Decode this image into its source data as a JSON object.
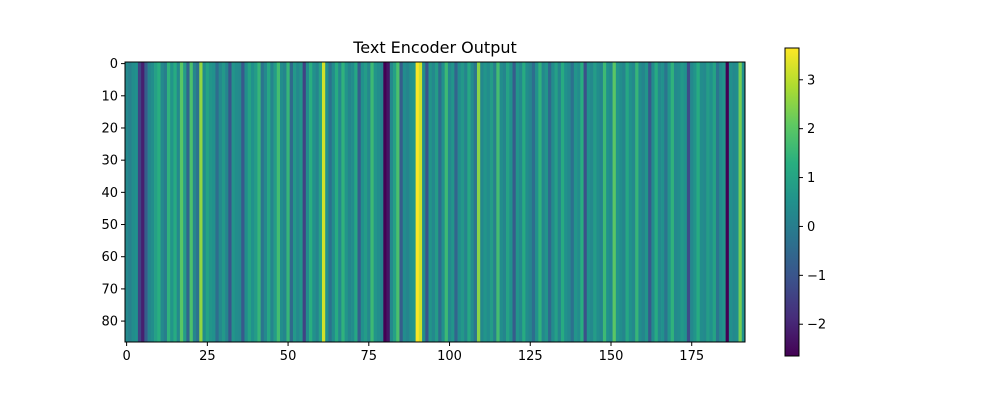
{
  "chart_data": {
    "type": "heatmap",
    "title": "Text Encoder Output",
    "xlabel": "",
    "ylabel": "",
    "n_columns": 192,
    "n_rows": 87,
    "xlim": [
      -0.5,
      191.5
    ],
    "ylim": [
      86.5,
      -0.5
    ],
    "x_ticks": [
      0,
      25,
      50,
      75,
      100,
      125,
      150,
      175
    ],
    "y_ticks": [
      0,
      10,
      20,
      30,
      40,
      50,
      60,
      70,
      80
    ],
    "colormap": "viridis",
    "colorbar": {
      "min": -2.65,
      "max": 3.65,
      "ticks": [
        -2,
        -1,
        0,
        1,
        2,
        3
      ],
      "tick_labels": [
        "−2",
        "−1",
        "0",
        "1",
        "2",
        "3"
      ]
    },
    "note_rows_identical": true,
    "column_values": [
      0.3,
      0.1,
      0.4,
      0.5,
      -1.4,
      -2.1,
      -0.8,
      0.2,
      0.4,
      0.9,
      1.3,
      0.3,
      0.0,
      1.4,
      0.6,
      1.2,
      0.3,
      2.0,
      0.8,
      -0.6,
      1.8,
      0.2,
      -0.3,
      2.6,
      0.4,
      1.0,
      0.6,
      0.5,
      -0.4,
      0.3,
      0.7,
      0.2,
      -1.0,
      0.6,
      0.4,
      0.3,
      -0.9,
      0.4,
      1.0,
      0.5,
      0.8,
      1.5,
      -0.2,
      0.3,
      1.1,
      0.2,
      0.8,
      1.7,
      0.4,
      0.2,
      1.5,
      -0.5,
      0.7,
      0.3,
      0.6,
      -1.4,
      0.4,
      1.3,
      0.5,
      0.2,
      0.9,
      3.2,
      0.5,
      -0.3,
      0.4,
      1.2,
      0.3,
      1.4,
      0.6,
      0.2,
      0.4,
      1.1,
      -0.8,
      0.5,
      0.8,
      0.3,
      1.6,
      0.6,
      0.4,
      0.2,
      -2.7,
      -2.3,
      0.3,
      0.9,
      1.8,
      -0.8,
      0.4,
      0.2,
      0.5,
      0.6,
      3.6,
      3.2,
      0.4,
      -1.0,
      0.6,
      0.3,
      0.8,
      -0.4,
      0.5,
      1.6,
      0.3,
      0.6,
      -0.6,
      0.4,
      0.7,
      0.2,
      1.1,
      0.4,
      -0.2,
      2.5,
      0.3,
      0.6,
      0.4,
      0.8,
      0.1,
      1.7,
      0.4,
      0.2,
      1.0,
      0.5,
      -0.8,
      0.6,
      0.3,
      1.2,
      0.4,
      0.2,
      -0.4,
      0.5,
      1.4,
      0.3,
      0.6,
      -0.5,
      0.4,
      0.9,
      0.2,
      1.2,
      0.5,
      0.3,
      -0.3,
      0.6,
      0.4,
      1.3,
      -1.1,
      0.5,
      0.3,
      0.8,
      0.4,
      0.2,
      1.6,
      0.5,
      0.3,
      2.0,
      0.6,
      0.4,
      0.2,
      1.1,
      0.5,
      0.3,
      1.5,
      0.4,
      0.2,
      0.6,
      -0.9,
      0.4,
      1.2,
      0.3,
      0.5,
      -0.2,
      0.6,
      1.4,
      0.3,
      0.4,
      0.7,
      0.5,
      -1.2,
      0.3,
      0.6,
      1.2,
      0.4,
      0.3,
      0.8,
      0.5,
      1.0,
      -0.2,
      0.4,
      0.6,
      -2.7,
      0.5,
      0.3,
      0.4,
      2.3,
      0.5
    ]
  }
}
